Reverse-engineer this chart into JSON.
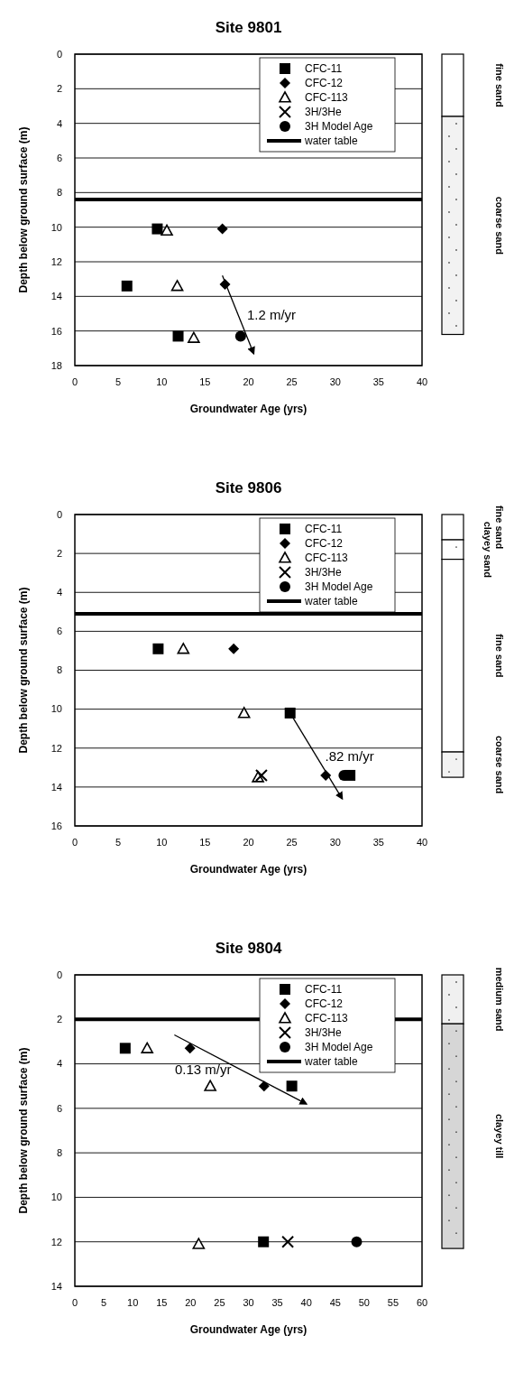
{
  "chart_data": [
    {
      "type": "scatter",
      "title": "Site 9801",
      "xlabel": "Groundwater Age (yrs)",
      "ylabel": "Depth below ground surface (m)",
      "xlim": [
        0,
        40
      ],
      "xticks": [
        0,
        5,
        10,
        15,
        20,
        25,
        30,
        35,
        40
      ],
      "ylim": [
        18,
        0
      ],
      "yticks": [
        0,
        2,
        4,
        6,
        8,
        10,
        12,
        14,
        16,
        18
      ],
      "grid": "y",
      "legend": "top right",
      "series": [
        {
          "name": "CFC-11",
          "color": "#000000",
          "marker": "square",
          "x": [
            9.5,
            6,
            11.9
          ],
          "values": [
            10.1,
            13.4,
            16.3
          ]
        },
        {
          "name": "CFC-12",
          "color": "#000000",
          "marker": "diamond",
          "x": [
            17,
            17.3
          ],
          "values": [
            10.1,
            13.3
          ]
        },
        {
          "name": "CFC-113",
          "color": "#000000",
          "marker": "triangle",
          "x": [
            10.6,
            11.8,
            13.7
          ],
          "values": [
            10.2,
            13.4,
            16.4
          ]
        },
        {
          "name": "3H/3He",
          "color": "#000000",
          "marker": "cross"
        },
        {
          "name": "3H Model Age",
          "color": "#000000",
          "marker": "circle",
          "x": [
            19.1
          ],
          "values": [
            16.3
          ]
        },
        {
          "type": "line",
          "color": "#000000",
          "marker": "none",
          "x": [
            17,
            20.6
          ],
          "values": [
            12.8,
            17.3
          ]
        }
      ],
      "ref_lines": [
        {
          "axis": "y",
          "value": 8.4,
          "label": "water table",
          "color": "#000000"
        }
      ],
      "annotations": [
        "1.2 m/yr"
      ]
    },
    {
      "type": "bar",
      "stacked": true,
      "categories": [
        null
      ],
      "ylim": [
        18,
        0
      ],
      "series": [
        {
          "name": "fine sand",
          "color": "#ffffff",
          "values": [
            3.6
          ]
        },
        {
          "name": "coarse sand",
          "color": "#f2f2f2",
          "values": [
            12.6
          ]
        }
      ]
    },
    {
      "type": "scatter",
      "title": "Site 9806",
      "xlabel": "Groundwater Age (yrs)",
      "ylabel": "Depth below ground surface (m)",
      "xlim": [
        0,
        40
      ],
      "xticks": [
        0,
        5,
        10,
        15,
        20,
        25,
        30,
        35,
        40
      ],
      "ylim": [
        16,
        0
      ],
      "yticks": [
        0,
        2,
        4,
        6,
        8,
        10,
        12,
        14,
        16
      ],
      "grid": "y",
      "legend": "top right",
      "series": [
        {
          "name": "CFC-11",
          "color": "#000000",
          "marker": "square",
          "x": [
            9.6,
            24.8,
            31.7
          ],
          "values": [
            6.9,
            10.2,
            13.4
          ]
        },
        {
          "name": "CFC-12",
          "color": "#000000",
          "marker": "diamond",
          "x": [
            18.3,
            28.9
          ],
          "values": [
            6.9,
            13.4
          ]
        },
        {
          "name": "CFC-113",
          "color": "#000000",
          "marker": "triangle",
          "x": [
            12.5,
            19.5,
            21.1
          ],
          "values": [
            6.9,
            10.2,
            13.5
          ]
        },
        {
          "name": "3H/3He",
          "color": "#000000",
          "marker": "cross",
          "x": [
            21.5
          ],
          "values": [
            13.4
          ]
        },
        {
          "name": "3H Model Age",
          "color": "#000000",
          "marker": "circle",
          "x": [
            31
          ],
          "values": [
            13.4
          ]
        },
        {
          "type": "line",
          "color": "#000000",
          "marker": "none",
          "x": [
            24.8,
            30.8
          ],
          "values": [
            10.2,
            14.6
          ]
        }
      ],
      "ref_lines": [
        {
          "axis": "y",
          "value": 5.1,
          "label": "water table",
          "color": "#000000"
        }
      ],
      "annotations": [
        ".82 m/yr"
      ]
    },
    {
      "type": "bar",
      "stacked": true,
      "categories": [
        null
      ],
      "ylim": [
        16,
        0
      ],
      "series": [
        {
          "name": "fine sand",
          "color": "#ffffff",
          "values": [
            1.3
          ]
        },
        {
          "name": "clayey sand",
          "color": "#fefefe",
          "values": [
            1
          ]
        },
        {
          "name": "fine sand",
          "color": "#ffffff",
          "values": [
            9.9
          ]
        },
        {
          "name": "coarse sand",
          "color": "#f2f2f2",
          "values": [
            1.3
          ]
        }
      ]
    },
    {
      "type": "scatter",
      "title": "Site 9804",
      "xlabel": "Groundwater Age (yrs)",
      "ylabel": "Depth below ground surface (m)",
      "xlim": [
        0,
        60
      ],
      "xticks": [
        0,
        5,
        10,
        15,
        20,
        25,
        30,
        35,
        40,
        45,
        50,
        55,
        60
      ],
      "ylim": [
        14,
        0
      ],
      "yticks": [
        0,
        2,
        4,
        6,
        8,
        10,
        12,
        14
      ],
      "grid": "y",
      "legend": "top right",
      "series": [
        {
          "name": "CFC-11",
          "color": "#000000",
          "marker": "square",
          "x": [
            8.7,
            37.5,
            32.6
          ],
          "values": [
            3.3,
            5,
            12
          ]
        },
        {
          "name": "CFC-12",
          "color": "#000000",
          "marker": "diamond",
          "x": [
            19.9,
            32.7
          ],
          "values": [
            3.3,
            5
          ]
        },
        {
          "name": "CFC-113",
          "color": "#000000",
          "marker": "triangle",
          "x": [
            12.5,
            23.4,
            21.4
          ],
          "values": [
            3.3,
            5,
            12.1
          ]
        },
        {
          "name": "3H/3He",
          "color": "#000000",
          "marker": "cross",
          "x": [
            36.8
          ],
          "values": [
            12
          ]
        },
        {
          "name": "3H Model Age",
          "color": "#000000",
          "marker": "circle",
          "x": [
            48.7
          ],
          "values": [
            12
          ]
        },
        {
          "type": "line",
          "color": "#000000",
          "marker": "none",
          "x": [
            17.2,
            40
          ],
          "values": [
            2.7,
            5.8
          ]
        }
      ],
      "ref_lines": [
        {
          "axis": "y",
          "value": 2,
          "label": "water table",
          "color": "#000000"
        }
      ],
      "annotations": [
        "0.13 m/yr"
      ]
    },
    {
      "type": "bar",
      "stacked": true,
      "categories": [
        null
      ],
      "ylim": [
        14,
        0
      ],
      "series": [
        {
          "name": "medium sand",
          "color": "#f0f0f0",
          "values": [
            2.2
          ]
        },
        {
          "name": "clayey till",
          "color": "#d6d6d6",
          "values": [
            10.1
          ]
        }
      ]
    }
  ]
}
